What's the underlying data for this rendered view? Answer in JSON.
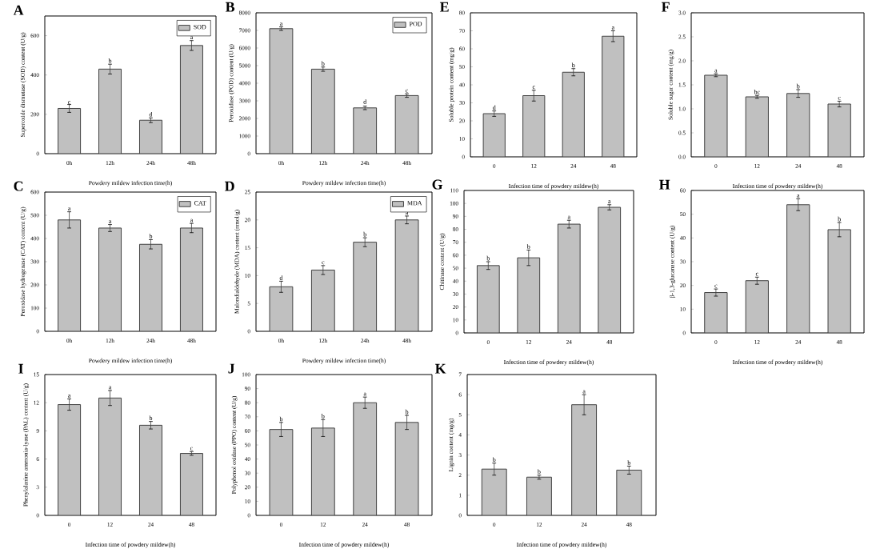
{
  "chart_data": [
    {
      "type": "bar",
      "title": "A",
      "xlabel": "Powdery mildew infection time(h)",
      "ylabel": "Superoxide dismutase (SOD) content (U/g)",
      "categories": [
        "0h",
        "12h",
        "24h",
        "48h"
      ],
      "ylim": [
        0,
        700
      ],
      "yticks": [
        0,
        200,
        400,
        600
      ],
      "legend": "top right",
      "series": [
        {
          "name": "SOD",
          "color": "#c0c0c0",
          "values": [
            230,
            430,
            170,
            550
          ],
          "errors": [
            20,
            25,
            12,
            25
          ]
        }
      ],
      "annotations": [
        {
          "text": "c",
          "x": "0h",
          "y": 245
        },
        {
          "text": "b",
          "x": "12h",
          "y": 455
        },
        {
          "text": "d",
          "x": "24h",
          "y": 182
        },
        {
          "text": "a",
          "x": "48h",
          "y": 575
        }
      ]
    },
    {
      "type": "bar",
      "title": "B",
      "xlabel": "Powdery mildew infection time(h)",
      "ylabel": "Peroxidase (POD) content (U/g)",
      "categories": [
        "0h",
        "12h",
        "24h",
        "48h"
      ],
      "ylim": [
        0,
        8000
      ],
      "yticks": [
        0,
        1000,
        2000,
        3000,
        4000,
        5000,
        6000,
        7000,
        8000
      ],
      "legend": "top right",
      "series": [
        {
          "name": "POD",
          "color": "#c0c0c0",
          "values": [
            7100,
            4800,
            2600,
            3300
          ],
          "errors": [
            100,
            120,
            100,
            100
          ]
        }
      ],
      "annotations": [
        {
          "text": "a",
          "x": "0h",
          "y": 7200
        },
        {
          "text": "b",
          "x": "12h",
          "y": 4920
        },
        {
          "text": "d",
          "x": "24h",
          "y": 2750
        },
        {
          "text": "c",
          "x": "48h",
          "y": 3400
        }
      ]
    },
    {
      "type": "bar",
      "title": "E",
      "xlabel": "Infection time of powdery mildew(h)",
      "ylabel": "Soluble protein content (mg/g)",
      "categories": [
        "0",
        "12",
        "24",
        "48"
      ],
      "ylim": [
        0,
        80
      ],
      "yticks": [
        0,
        10,
        20,
        30,
        40,
        50,
        60,
        70,
        80
      ],
      "series": [
        {
          "color": "#c0c0c0",
          "values": [
            24,
            34,
            47,
            67
          ],
          "errors": [
            1.5,
            3,
            2,
            3
          ]
        }
      ],
      "annotations": [
        {
          "text": "d",
          "x": "0",
          "y": 25.5
        },
        {
          "text": "c",
          "x": "12",
          "y": 37
        },
        {
          "text": "b",
          "x": "24",
          "y": 49
        },
        {
          "text": "a",
          "x": "48",
          "y": 70
        }
      ]
    },
    {
      "type": "bar",
      "title": "F",
      "xlabel": "Infection time of powdery mildew(h)",
      "ylabel": "Soluble sugar content (mg/g)",
      "categories": [
        "0",
        "12",
        "24",
        "48"
      ],
      "ylim": [
        0,
        3
      ],
      "yticks": [
        {
          "value": 0,
          "label": "0.0"
        },
        {
          "value": 0.5,
          "label": "0.5"
        },
        {
          "value": 1,
          "label": "1.0"
        },
        {
          "value": 1.5,
          "label": "1.5"
        },
        {
          "value": 2,
          "label": "2.0"
        },
        {
          "value": 2.5,
          "label": "2.5"
        },
        {
          "value": 3,
          "label": "3.0"
        }
      ],
      "series": [
        {
          "color": "#c0c0c0",
          "values": [
            1.7,
            1.25,
            1.32,
            1.1
          ],
          "errors": [
            0.03,
            0.03,
            0.08,
            0.06
          ]
        }
      ],
      "annotations": [
        {
          "text": "a",
          "x": "0",
          "y": 1.73
        },
        {
          "text": "bc",
          "x": "12",
          "y": 1.28
        },
        {
          "text": "b",
          "x": "24",
          "y": 1.4
        },
        {
          "text": "c",
          "x": "48",
          "y": 1.16
        }
      ]
    },
    {
      "type": "bar",
      "title": "C",
      "xlabel": "Powdery mildew infection time(h)",
      "ylabel": "Peroxidase hydrogenase (CAT) content (U/g)",
      "categories": [
        "0h",
        "12h",
        "24h",
        "48h"
      ],
      "ylim": [
        0,
        600
      ],
      "yticks": [
        0,
        100,
        200,
        300,
        400,
        500,
        600
      ],
      "legend": "top right",
      "series": [
        {
          "name": "CAT",
          "color": "#c0c0c0",
          "values": [
            480,
            445,
            375,
            445
          ],
          "errors": [
            35,
            15,
            20,
            20
          ]
        }
      ],
      "annotations": [
        {
          "text": "a",
          "x": "0h",
          "y": 515
        },
        {
          "text": "a",
          "x": "12h",
          "y": 460
        },
        {
          "text": "b",
          "x": "24h",
          "y": 395
        },
        {
          "text": "a",
          "x": "48h",
          "y": 465
        }
      ]
    },
    {
      "type": "bar",
      "title": "D",
      "xlabel": "Powdery mildew infection time(h)",
      "ylabel": "Malondialdehyde (MDA) content (nmol/g)",
      "categories": [
        "0h",
        "12h",
        "24h",
        "48h"
      ],
      "ylim": [
        0,
        25
      ],
      "yticks": [
        0,
        5,
        10,
        15,
        20,
        25
      ],
      "legend": "top right",
      "series": [
        {
          "name": "MDA",
          "color": "#c0c0c0",
          "values": [
            8,
            11,
            16,
            20
          ],
          "errors": [
            1,
            0.8,
            0.8,
            0.7
          ]
        }
      ],
      "annotations": [
        {
          "text": "d",
          "x": "0h",
          "y": 9
        },
        {
          "text": "c",
          "x": "12h",
          "y": 11.8
        },
        {
          "text": "b",
          "x": "24h",
          "y": 16.8
        },
        {
          "text": "a",
          "x": "48h",
          "y": 20.7
        }
      ]
    },
    {
      "type": "bar",
      "title": "G",
      "xlabel": "Infection time of powdery mildew(h)",
      "ylabel": "Chitinase content (U/g)",
      "categories": [
        "0",
        "12",
        "24",
        "48"
      ],
      "ylim": [
        0,
        110
      ],
      "yticks": [
        0,
        10,
        20,
        30,
        40,
        50,
        60,
        70,
        80,
        90,
        100,
        110
      ],
      "series": [
        {
          "color": "#c0c0c0",
          "values": [
            52,
            58,
            84,
            97
          ],
          "errors": [
            3,
            6,
            3,
            2
          ]
        }
      ],
      "annotations": [
        {
          "text": "b",
          "x": "0",
          "y": 55
        },
        {
          "text": "b",
          "x": "12",
          "y": 64
        },
        {
          "text": "a",
          "x": "24",
          "y": 87
        },
        {
          "text": "a",
          "x": "48",
          "y": 99
        }
      ]
    },
    {
      "type": "bar",
      "title": "H",
      "xlabel": "Infection time of powdery mildew(h)",
      "ylabel": "β-1,3-glucanase content (U/g)",
      "categories": [
        "0",
        "12",
        "24",
        "48"
      ],
      "ylim": [
        0,
        60
      ],
      "yticks": [
        0,
        10,
        20,
        30,
        40,
        50,
        60
      ],
      "series": [
        {
          "color": "#c0c0c0",
          "values": [
            17,
            22,
            54,
            43.5
          ],
          "errors": [
            1.5,
            1.5,
            2.5,
            3
          ]
        }
      ],
      "annotations": [
        {
          "text": "c",
          "x": "0",
          "y": 18.5
        },
        {
          "text": "c",
          "x": "12",
          "y": 23.5
        },
        {
          "text": "a",
          "x": "24",
          "y": 56.5
        },
        {
          "text": "b",
          "x": "48",
          "y": 46.5
        }
      ]
    },
    {
      "type": "bar",
      "title": "I",
      "xlabel": "Infection time of powdery mildew(h)",
      "ylabel": "Phenylalanine ammonia-lyase (PAL) content (U/g)",
      "categories": [
        "0",
        "12",
        "24",
        "48"
      ],
      "ylim": [
        0,
        15
      ],
      "yticks": [
        0,
        3,
        6,
        9,
        12,
        15
      ],
      "series": [
        {
          "color": "#c0c0c0",
          "values": [
            11.8,
            12.5,
            9.6,
            6.6
          ],
          "errors": [
            0.6,
            0.8,
            0.4,
            0.2
          ]
        }
      ],
      "annotations": [
        {
          "text": "a",
          "x": "0",
          "y": 12.4
        },
        {
          "text": "a",
          "x": "12",
          "y": 13.3
        },
        {
          "text": "b",
          "x": "24",
          "y": 10
        },
        {
          "text": "c",
          "x": "48",
          "y": 6.8
        }
      ]
    },
    {
      "type": "bar",
      "title": "J",
      "xlabel": "Infection time of powdery mildew(h)",
      "ylabel": "Polyphenol oxidase (PPO) content (U/g)",
      "categories": [
        "0",
        "12",
        "24",
        "48"
      ],
      "ylim": [
        0,
        100
      ],
      "yticks": [
        0,
        10,
        20,
        30,
        40,
        50,
        60,
        70,
        80,
        90,
        100
      ],
      "series": [
        {
          "color": "#c0c0c0",
          "values": [
            61,
            62,
            80,
            66
          ],
          "errors": [
            5,
            6,
            4,
            5
          ]
        }
      ],
      "annotations": [
        {
          "text": "b",
          "x": "0",
          "y": 66
        },
        {
          "text": "b",
          "x": "12",
          "y": 68
        },
        {
          "text": "a",
          "x": "24",
          "y": 84
        },
        {
          "text": "b",
          "x": "48",
          "y": 71
        }
      ]
    },
    {
      "type": "bar",
      "title": "K",
      "xlabel": "Infection time of powdery mildew(h)",
      "ylabel": "Lignin content (mg/g)",
      "categories": [
        "0",
        "12",
        "24",
        "48"
      ],
      "ylim": [
        0,
        7
      ],
      "yticks": [
        0,
        1,
        2,
        3,
        4,
        5,
        6,
        7
      ],
      "series": [
        {
          "color": "#c0c0c0",
          "values": [
            2.3,
            1.9,
            5.5,
            2.25
          ],
          "errors": [
            0.3,
            0.1,
            0.5,
            0.2
          ]
        }
      ],
      "annotations": [
        {
          "text": "b",
          "x": "0",
          "y": 2.6
        },
        {
          "text": "b",
          "x": "12",
          "y": 2
        },
        {
          "text": "a",
          "x": "24",
          "y": 6
        },
        {
          "text": "b",
          "x": "48",
          "y": 2.45
        }
      ]
    }
  ]
}
